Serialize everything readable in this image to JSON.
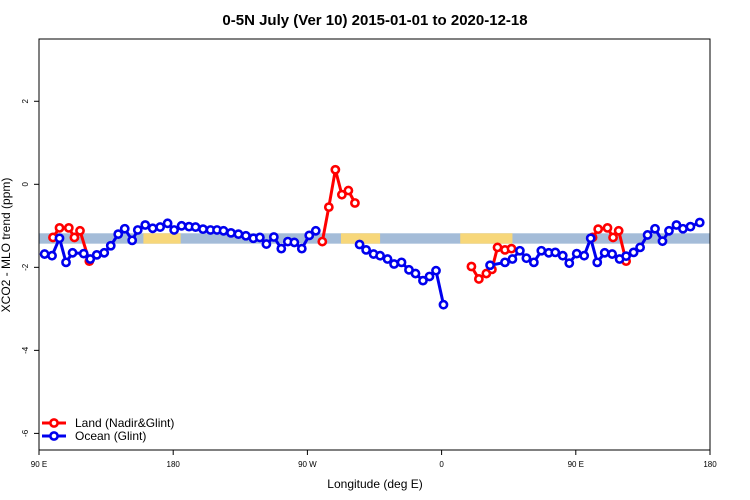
{
  "chart_data": {
    "type": "line",
    "title": "0-5N July (Ver 10)   2015-01-01 to 2020-12-18",
    "xlabel": "Longitude (deg E)",
    "ylabel": "XCO2 - MLO trend (ppm)",
    "xlim": [
      90,
      450
    ],
    "ylim": [
      -6.4,
      3.5
    ],
    "x_ticks": [
      {
        "value": 90,
        "label": "90 E"
      },
      {
        "value": 162,
        "label": "180"
      },
      {
        "value": 234,
        "label": "90 W"
      },
      {
        "value": 306,
        "label": "0"
      },
      {
        "value": 378,
        "label": "90 E"
      },
      {
        "value": 450,
        "label": "180"
      }
    ],
    "y_ticks": [
      {
        "value": 2,
        "label": "2"
      },
      {
        "value": 0,
        "label": "0"
      },
      {
        "value": -2,
        "label": "-2"
      },
      {
        "value": -4,
        "label": "-4"
      },
      {
        "value": -6,
        "label": "-6"
      }
    ],
    "band": {
      "y_min": -1.43,
      "y_max": -1.18,
      "color": "#a4bcd8",
      "highlight_color": "#f7d77a",
      "highlight_ranges": [
        [
          146,
          166
        ],
        [
          252,
          273
        ],
        [
          316,
          344
        ]
      ]
    },
    "legend": {
      "position": "bottom-left",
      "entries": [
        {
          "label": "Land (Nadir&Glint)",
          "color": "#ff0000"
        },
        {
          "label": "Ocean (Glint)",
          "color": "#0000ee"
        }
      ]
    },
    "series": [
      {
        "name": "Land (Nadir&Glint)",
        "color": "#ff0000",
        "segments": [
          [
            [
              97.5,
              -1.28
            ],
            [
              101,
              -1.05
            ],
            [
              106,
              -1.05
            ],
            [
              109,
              -1.28
            ],
            [
              112,
              -1.12
            ],
            [
              117,
              -1.85
            ]
          ],
          [
            [
              242,
              -1.38
            ],
            [
              245.5,
              -0.55
            ],
            [
              249,
              0.35
            ],
            [
              252.5,
              -0.25
            ],
            [
              256,
              -0.15
            ],
            [
              259.5,
              -0.45
            ]
          ],
          [
            [
              322,
              -1.98
            ],
            [
              326,
              -2.28
            ],
            [
              330,
              -2.15
            ],
            [
              333,
              -2.05
            ],
            [
              336,
              -1.52
            ],
            [
              340,
              -1.58
            ],
            [
              343.5,
              -1.55
            ]
          ],
          [
            [
              387,
              -1.28
            ],
            [
              390,
              -1.08
            ],
            [
              395,
              -1.05
            ],
            [
              398,
              -1.28
            ],
            [
              401,
              -1.12
            ],
            [
              405,
              -1.85
            ]
          ]
        ]
      },
      {
        "name": "Ocean (Glint)",
        "color": "#0000ee",
        "segments": [
          [
            [
              93,
              -1.68
            ],
            [
              97,
              -1.72
            ],
            [
              101,
              -1.3
            ],
            [
              104.5,
              -1.88
            ],
            [
              108,
              -1.65
            ],
            [
              114,
              -1.67
            ],
            [
              117.5,
              -1.8
            ],
            [
              121,
              -1.7
            ],
            [
              125,
              -1.65
            ],
            [
              128.5,
              -1.48
            ],
            [
              132.5,
              -1.2
            ],
            [
              136,
              -1.07
            ],
            [
              140,
              -1.35
            ],
            [
              143,
              -1.1
            ],
            [
              147,
              -0.98
            ],
            [
              151,
              -1.06
            ],
            [
              155,
              -1.03
            ],
            [
              159,
              -0.94
            ],
            [
              162.5,
              -1.1
            ],
            [
              166.5,
              -1.0
            ],
            [
              170.5,
              -1.02
            ],
            [
              174,
              -1.03
            ],
            [
              178,
              -1.08
            ],
            [
              182,
              -1.1
            ],
            [
              185.5,
              -1.1
            ],
            [
              189,
              -1.12
            ],
            [
              193,
              -1.17
            ],
            [
              197,
              -1.2
            ],
            [
              201,
              -1.24
            ],
            [
              205,
              -1.3
            ],
            [
              208.5,
              -1.28
            ],
            [
              212,
              -1.44
            ],
            [
              216,
              -1.27
            ],
            [
              220,
              -1.55
            ],
            [
              223.5,
              -1.38
            ],
            [
              227,
              -1.4
            ],
            [
              231,
              -1.55
            ],
            [
              235,
              -1.23
            ],
            [
              238.5,
              -1.12
            ]
          ],
          [
            [
              262,
              -1.45
            ],
            [
              265.5,
              -1.58
            ],
            [
              269.5,
              -1.68
            ],
            [
              273,
              -1.72
            ],
            [
              277,
              -1.8
            ],
            [
              280.5,
              -1.92
            ],
            [
              284.5,
              -1.88
            ],
            [
              288.5,
              -2.06
            ],
            [
              292,
              -2.15
            ],
            [
              296,
              -2.32
            ],
            [
              299.5,
              -2.22
            ],
            [
              303,
              -2.08
            ],
            [
              307,
              -2.9
            ]
          ],
          [
            [
              332,
              -1.95
            ],
            [
              340,
              -1.88
            ],
            [
              344,
              -1.8
            ],
            [
              348,
              -1.6
            ],
            [
              351.5,
              -1.78
            ],
            [
              355.5,
              -1.88
            ],
            [
              359.5,
              -1.6
            ],
            [
              363.5,
              -1.65
            ],
            [
              367,
              -1.64
            ],
            [
              371,
              -1.72
            ],
            [
              374.5,
              -1.9
            ],
            [
              378.5,
              -1.67
            ],
            [
              382.5,
              -1.72
            ],
            [
              386,
              -1.3
            ],
            [
              389.5,
              -1.88
            ],
            [
              393.5,
              -1.65
            ],
            [
              397.5,
              -1.68
            ],
            [
              401.5,
              -1.8
            ],
            [
              405,
              -1.73
            ],
            [
              409,
              -1.64
            ],
            [
              412.5,
              -1.52
            ],
            [
              416.5,
              -1.22
            ],
            [
              420.5,
              -1.07
            ],
            [
              424.5,
              -1.37
            ],
            [
              428,
              -1.12
            ],
            [
              432,
              -0.98
            ],
            [
              435.5,
              -1.07
            ],
            [
              439.5,
              -1.02
            ],
            [
              444.5,
              -0.92
            ]
          ]
        ]
      }
    ]
  }
}
